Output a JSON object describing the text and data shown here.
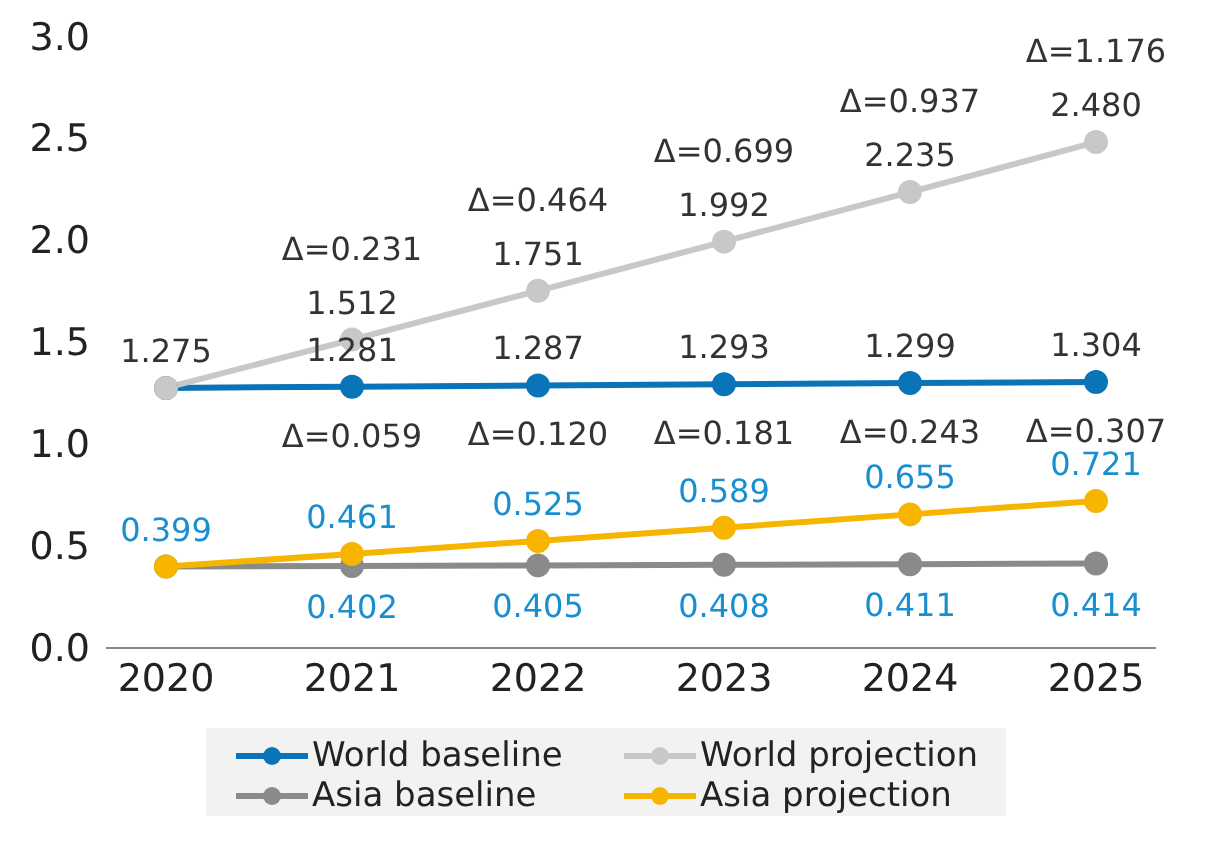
{
  "chart_data": {
    "type": "line",
    "categories": [
      "2020",
      "2021",
      "2022",
      "2023",
      "2024",
      "2025"
    ],
    "series": [
      {
        "name": "World baseline",
        "color": "#0a74b8",
        "values": [
          1.275,
          1.281,
          1.287,
          1.293,
          1.299,
          1.304
        ],
        "value_labels": [
          "1.275",
          "1.281",
          "1.287",
          "1.293",
          "1.299",
          "1.304"
        ]
      },
      {
        "name": "World projection",
        "color": "#c8c8c8",
        "values": [
          1.275,
          1.512,
          1.751,
          1.992,
          2.235,
          2.48
        ],
        "value_labels": [
          null,
          "1.512",
          "1.751",
          "1.992",
          "2.235",
          "2.480"
        ]
      },
      {
        "name": "Asia baseline",
        "color": "#8a8a8a",
        "values": [
          0.399,
          0.402,
          0.405,
          0.408,
          0.411,
          0.414
        ],
        "value_labels": [
          null,
          "0.402",
          "0.405",
          "0.408",
          "0.411",
          "0.414"
        ]
      },
      {
        "name": "Asia projection",
        "color": "#f7b500",
        "values": [
          0.399,
          0.461,
          0.525,
          0.589,
          0.655,
          0.721
        ],
        "value_labels": [
          "0.399",
          "0.461",
          "0.525",
          "0.589",
          "0.655",
          "0.721"
        ]
      }
    ],
    "annotations": [
      {
        "text": "Δ=0.231",
        "x": "2021",
        "y": 1.512
      },
      {
        "text": "Δ=0.464",
        "x": "2022",
        "y": 1.751
      },
      {
        "text": "Δ=0.699",
        "x": "2023",
        "y": 1.992
      },
      {
        "text": "Δ=0.937",
        "x": "2024",
        "y": 2.235
      },
      {
        "text": "Δ=1.176",
        "x": "2025",
        "y": 2.48
      },
      {
        "text": "Δ=0.059",
        "x": "2021",
        "y": 1.281
      },
      {
        "text": "Δ=0.120",
        "x": "2022",
        "y": 1.287
      },
      {
        "text": "Δ=0.181",
        "x": "2023",
        "y": 1.293
      },
      {
        "text": "Δ=0.243",
        "x": "2024",
        "y": 1.299
      },
      {
        "text": "Δ=0.307",
        "x": "2025",
        "y": 1.304
      }
    ],
    "ylim": [
      0,
      3
    ],
    "yticks": [
      {
        "value": 0,
        "label": "0.0"
      },
      {
        "value": 0.5,
        "label": "0.5"
      },
      {
        "value": 1,
        "label": "1.0"
      },
      {
        "value": 1.5,
        "label": "1.5"
      },
      {
        "value": 2,
        "label": "2.0"
      },
      {
        "value": 2.5,
        "label": "2.5"
      },
      {
        "value": 3,
        "label": "3.0"
      }
    ],
    "grid": false,
    "legend": "bottom",
    "marker": "circle",
    "line_style": "solid"
  }
}
